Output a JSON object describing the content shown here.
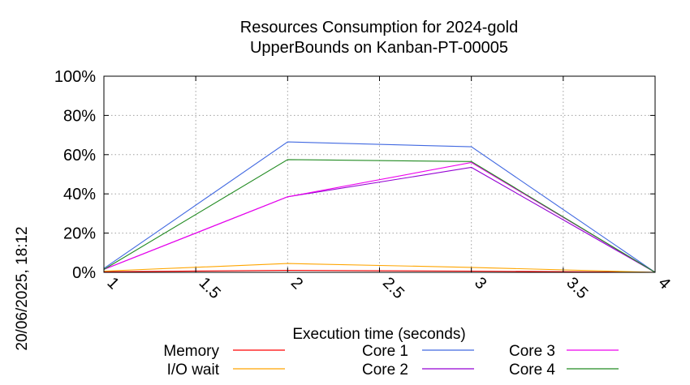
{
  "chart_data": {
    "type": "line",
    "title_lines": [
      "Resources Consumption for 2024-gold",
      "UpperBounds on Kanban-PT-00005"
    ],
    "xlabel": "Execution time (seconds)",
    "ylabel": "",
    "side_label": "20/06/2025, 18:12",
    "xlim": [
      1,
      4
    ],
    "ylim": [
      0,
      100
    ],
    "x_ticks": [
      1,
      1.5,
      2,
      2.5,
      3,
      3.5,
      4
    ],
    "x_tick_labels": [
      "1",
      "1.5",
      "2",
      "2.5",
      "3",
      "3.5",
      "4"
    ],
    "y_ticks": [
      0,
      20,
      40,
      60,
      80,
      100
    ],
    "y_tick_labels": [
      "0%",
      "20%",
      "40%",
      "60%",
      "80%",
      "100%"
    ],
    "grid": true,
    "legend_position": "bottom",
    "x": [
      1,
      2,
      3,
      4
    ],
    "series": [
      {
        "name": "Memory",
        "color": "#ff0000",
        "values": [
          0.3,
          1.0,
          0.6,
          0
        ]
      },
      {
        "name": "I/O wait",
        "color": "#ffa500",
        "values": [
          0.6,
          4.5,
          2.5,
          0
        ]
      },
      {
        "name": "Core 1",
        "color": "#4169e1",
        "values": [
          2,
          66.5,
          64,
          0
        ]
      },
      {
        "name": "Core 2",
        "color": "#9400d3",
        "values": [
          1.5,
          38.5,
          53.5,
          0
        ]
      },
      {
        "name": "Core 3",
        "color": "#ee00ee",
        "values": [
          1.5,
          38.5,
          56,
          0
        ]
      },
      {
        "name": "Core 4",
        "color": "#228b22",
        "values": [
          1.5,
          57.5,
          56.5,
          0
        ]
      }
    ]
  }
}
